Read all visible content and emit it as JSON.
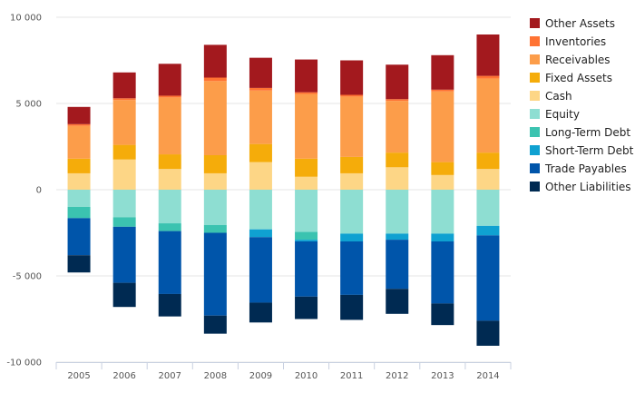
{
  "chart_data": {
    "type": "bar",
    "stacked": true,
    "title": "",
    "xlabel": "",
    "ylabel": "",
    "categories": [
      "2005",
      "2006",
      "2007",
      "2008",
      "2009",
      "2010",
      "2011",
      "2012",
      "2013",
      "2014"
    ],
    "ylim": [
      -10000,
      10000
    ],
    "yticks": [
      10000,
      5000,
      0,
      -5000,
      -10000
    ],
    "ytick_labels": [
      "10 000",
      "5 000",
      "0",
      "-5 000",
      "-10 000"
    ],
    "grid": true,
    "legend_position": "right",
    "positive_series": [
      {
        "name": "Cash",
        "color": "#FDD686",
        "values": [
          950,
          1750,
          1200,
          950,
          1600,
          750,
          950,
          1300,
          850,
          1200
        ]
      },
      {
        "name": "Fixed Assets",
        "color": "#F5AC0A",
        "values": [
          850,
          850,
          850,
          1050,
          1050,
          1050,
          950,
          850,
          750,
          950
        ]
      },
      {
        "name": "Receivables",
        "color": "#FC9D4A",
        "values": [
          1900,
          2600,
          3300,
          4300,
          3100,
          3750,
          3500,
          3000,
          4100,
          4300
        ]
      },
      {
        "name": "Inventories",
        "color": "#FF7333",
        "values": [
          100,
          100,
          100,
          200,
          150,
          100,
          100,
          100,
          100,
          150
        ]
      },
      {
        "name": "Other Assets",
        "color": "#A3191E",
        "values": [
          1000,
          1500,
          1850,
          1900,
          1750,
          1900,
          2000,
          2000,
          2000,
          2400
        ]
      }
    ],
    "negative_series": [
      {
        "name": "Equity",
        "color": "#8EDED2",
        "values": [
          -1000,
          -1600,
          -1950,
          -2050,
          -2300,
          -2450,
          -2550,
          -2550,
          -2550,
          -2100
        ]
      },
      {
        "name": "Long-Term Debt",
        "color": "#3BC3B0",
        "values": [
          -650,
          -550,
          -450,
          -450,
          0,
          -450,
          0,
          0,
          0,
          0
        ]
      },
      {
        "name": "Short-Term Debt",
        "color": "#0FA1D1",
        "values": [
          0,
          0,
          0,
          0,
          -450,
          -100,
          -450,
          -350,
          -450,
          -550
        ]
      },
      {
        "name": "Trade Payables",
        "color": "#0055AA",
        "values": [
          -2150,
          -3250,
          -3650,
          -4800,
          -3800,
          -3200,
          -3100,
          -2850,
          -3600,
          -4950
        ]
      },
      {
        "name": "Other Liabilities",
        "color": "#002A52",
        "values": [
          -1000,
          -1400,
          -1300,
          -1050,
          -1150,
          -1300,
          -1450,
          -1450,
          -1250,
          -1450
        ]
      }
    ],
    "legend": [
      "Other Assets",
      "Inventories",
      "Receivables",
      "Fixed Assets",
      "Cash",
      "Equity",
      "Long-Term Debt",
      "Short-Term Debt",
      "Trade Payables",
      "Other Liabilities"
    ],
    "legend_colors": [
      "#A3191E",
      "#FF7333",
      "#FC9D4A",
      "#F5AC0A",
      "#FDD686",
      "#8EDED2",
      "#3BC3B0",
      "#0FA1D1",
      "#0055AA",
      "#002A52"
    ]
  }
}
